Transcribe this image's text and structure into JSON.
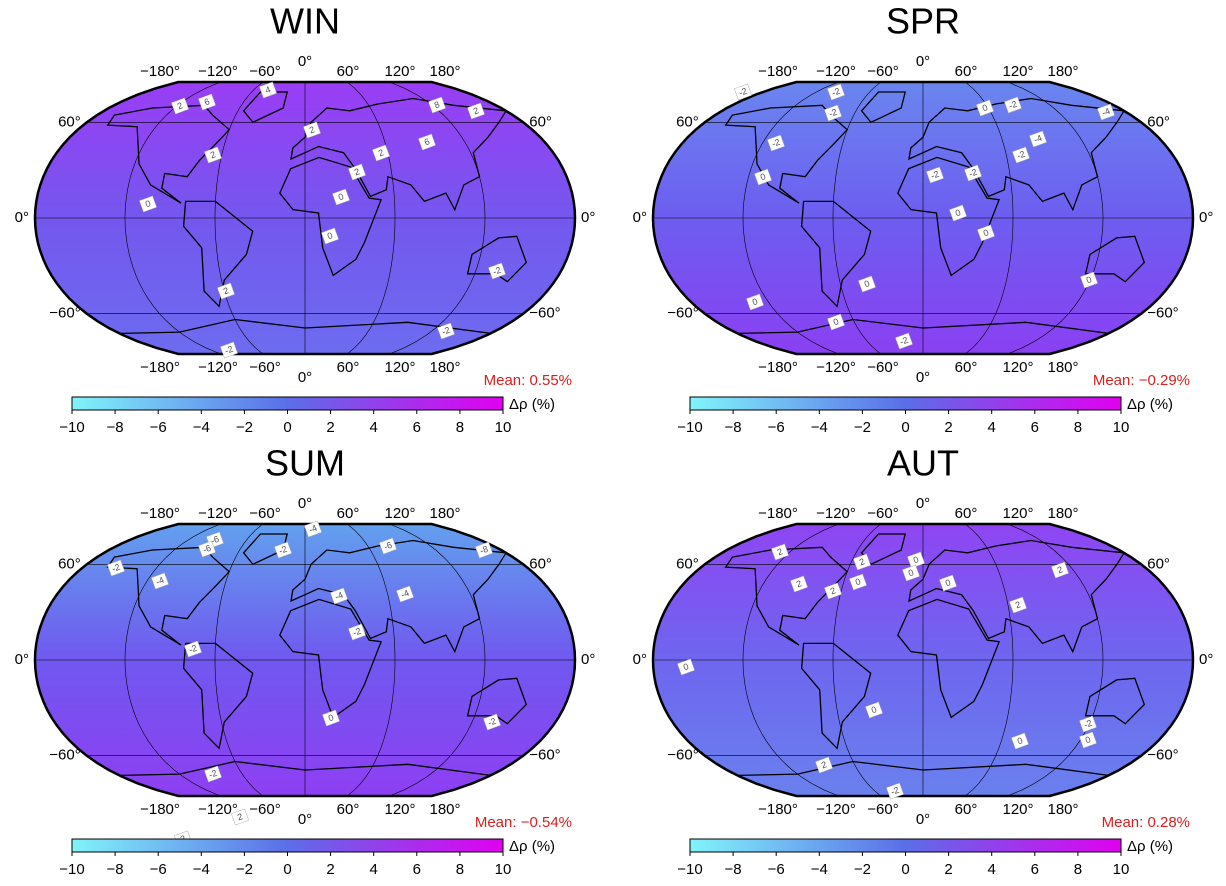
{
  "colorbar": {
    "label": "Δρ (%)",
    "range": [
      -10,
      10
    ],
    "colors": [
      "#80f4fa",
      "#5b6ee8",
      "#e100f0"
    ],
    "ticks": [
      {
        "value": -10,
        "label": "−10"
      },
      {
        "value": -8,
        "label": "−8"
      },
      {
        "value": -6,
        "label": "−6"
      },
      {
        "value": -4,
        "label": "−4"
      },
      {
        "value": -2,
        "label": "−2"
      },
      0,
      2,
      4,
      6,
      8,
      10
    ]
  },
  "longitude_labels": [
    "−180°",
    "−120°",
    "−60°",
    "0°",
    "60°",
    "120°",
    "180°"
  ],
  "latitude_labels": [
    "60°",
    "0°",
    "−60°"
  ],
  "panels": [
    {
      "title": "WIN",
      "mean": "Mean: 0.55%",
      "fill": [
        "#9a3df5",
        "#7457ee",
        "#6d6cf0"
      ],
      "contour_labels": [
        "2",
        "6",
        "4",
        "8",
        "2",
        "2",
        "2",
        "6",
        "2",
        "2",
        "0",
        "0",
        "0",
        "-2",
        "-2",
        "2",
        "-2"
      ]
    },
    {
      "title": "SPR",
      "mean": "Mean: −0.29%",
      "fill": [
        "#6a86ef",
        "#6d5df0",
        "#8a40f2"
      ],
      "contour_labels": [
        "-2",
        "-2",
        "-2",
        "-2",
        "0",
        "-2",
        "0",
        "-4",
        "-4",
        "-2",
        "-2",
        "-2",
        "0",
        "0",
        "0",
        "0",
        "0",
        "0",
        "-2"
      ]
    },
    {
      "title": "SUM",
      "mean": "Mean: −0.54%",
      "fill": [
        "#62a0ee",
        "#7058ef",
        "#8e3ff3"
      ],
      "contour_labels": [
        "-6",
        "-6",
        "-4",
        "-2",
        "-2",
        "-4",
        "-6",
        "-8",
        "-4",
        "-4",
        "-2",
        "-2",
        "0",
        "-2",
        "-2",
        "2",
        "2"
      ]
    },
    {
      "title": "AUT",
      "mean": "Mean: 0.28%",
      "fill": [
        "#8f45f3",
        "#6e66ef",
        "#6a80ee"
      ],
      "contour_labels": [
        "2",
        "2",
        "2",
        "2",
        "0",
        "0",
        "0",
        "0",
        "2",
        "2",
        "-2",
        "0",
        "0",
        "2",
        "0",
        "0",
        "-2"
      ]
    }
  ]
}
